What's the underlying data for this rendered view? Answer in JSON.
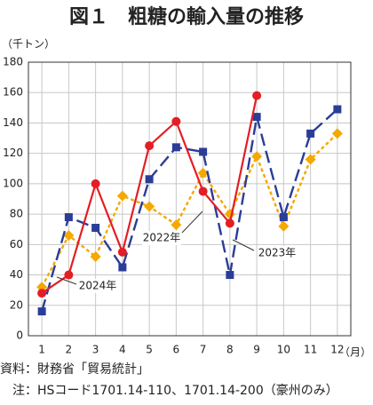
{
  "chart_data": {
    "type": "line",
    "title": "図１　粗糖の輸入量の推移",
    "y_unit": "（千トン）",
    "x_unit": "（月）",
    "categories": [
      "1",
      "2",
      "3",
      "4",
      "5",
      "6",
      "7",
      "8",
      "9",
      "10",
      "11",
      "12"
    ],
    "ylim": [
      0,
      180
    ],
    "yticks": [
      0,
      20,
      40,
      60,
      80,
      100,
      120,
      140,
      160,
      180
    ],
    "grid": true,
    "series": [
      {
        "name": "2022年",
        "color": "#f5a800",
        "dash": "dashed",
        "marker": "diamond",
        "values": [
          32,
          66,
          52,
          92,
          85,
          73,
          107,
          80,
          118,
          72,
          116,
          133
        ]
      },
      {
        "name": "2023年",
        "color": "#2b3d97",
        "dash": "longdash",
        "marker": "square",
        "values": [
          16,
          78,
          71,
          45,
          103,
          124,
          121,
          40,
          144,
          78,
          133,
          149
        ]
      },
      {
        "name": "2024年",
        "color": "#e31e24",
        "dash": "solid",
        "marker": "circle",
        "values": [
          28,
          40,
          100,
          55,
          125,
          141,
          95,
          74,
          158,
          null,
          null,
          null
        ]
      }
    ],
    "source": [
      "資料：財務省「貿易統計」",
      "　注：HSコード1701.14-110、1701.14-200（豪州のみ）"
    ]
  }
}
